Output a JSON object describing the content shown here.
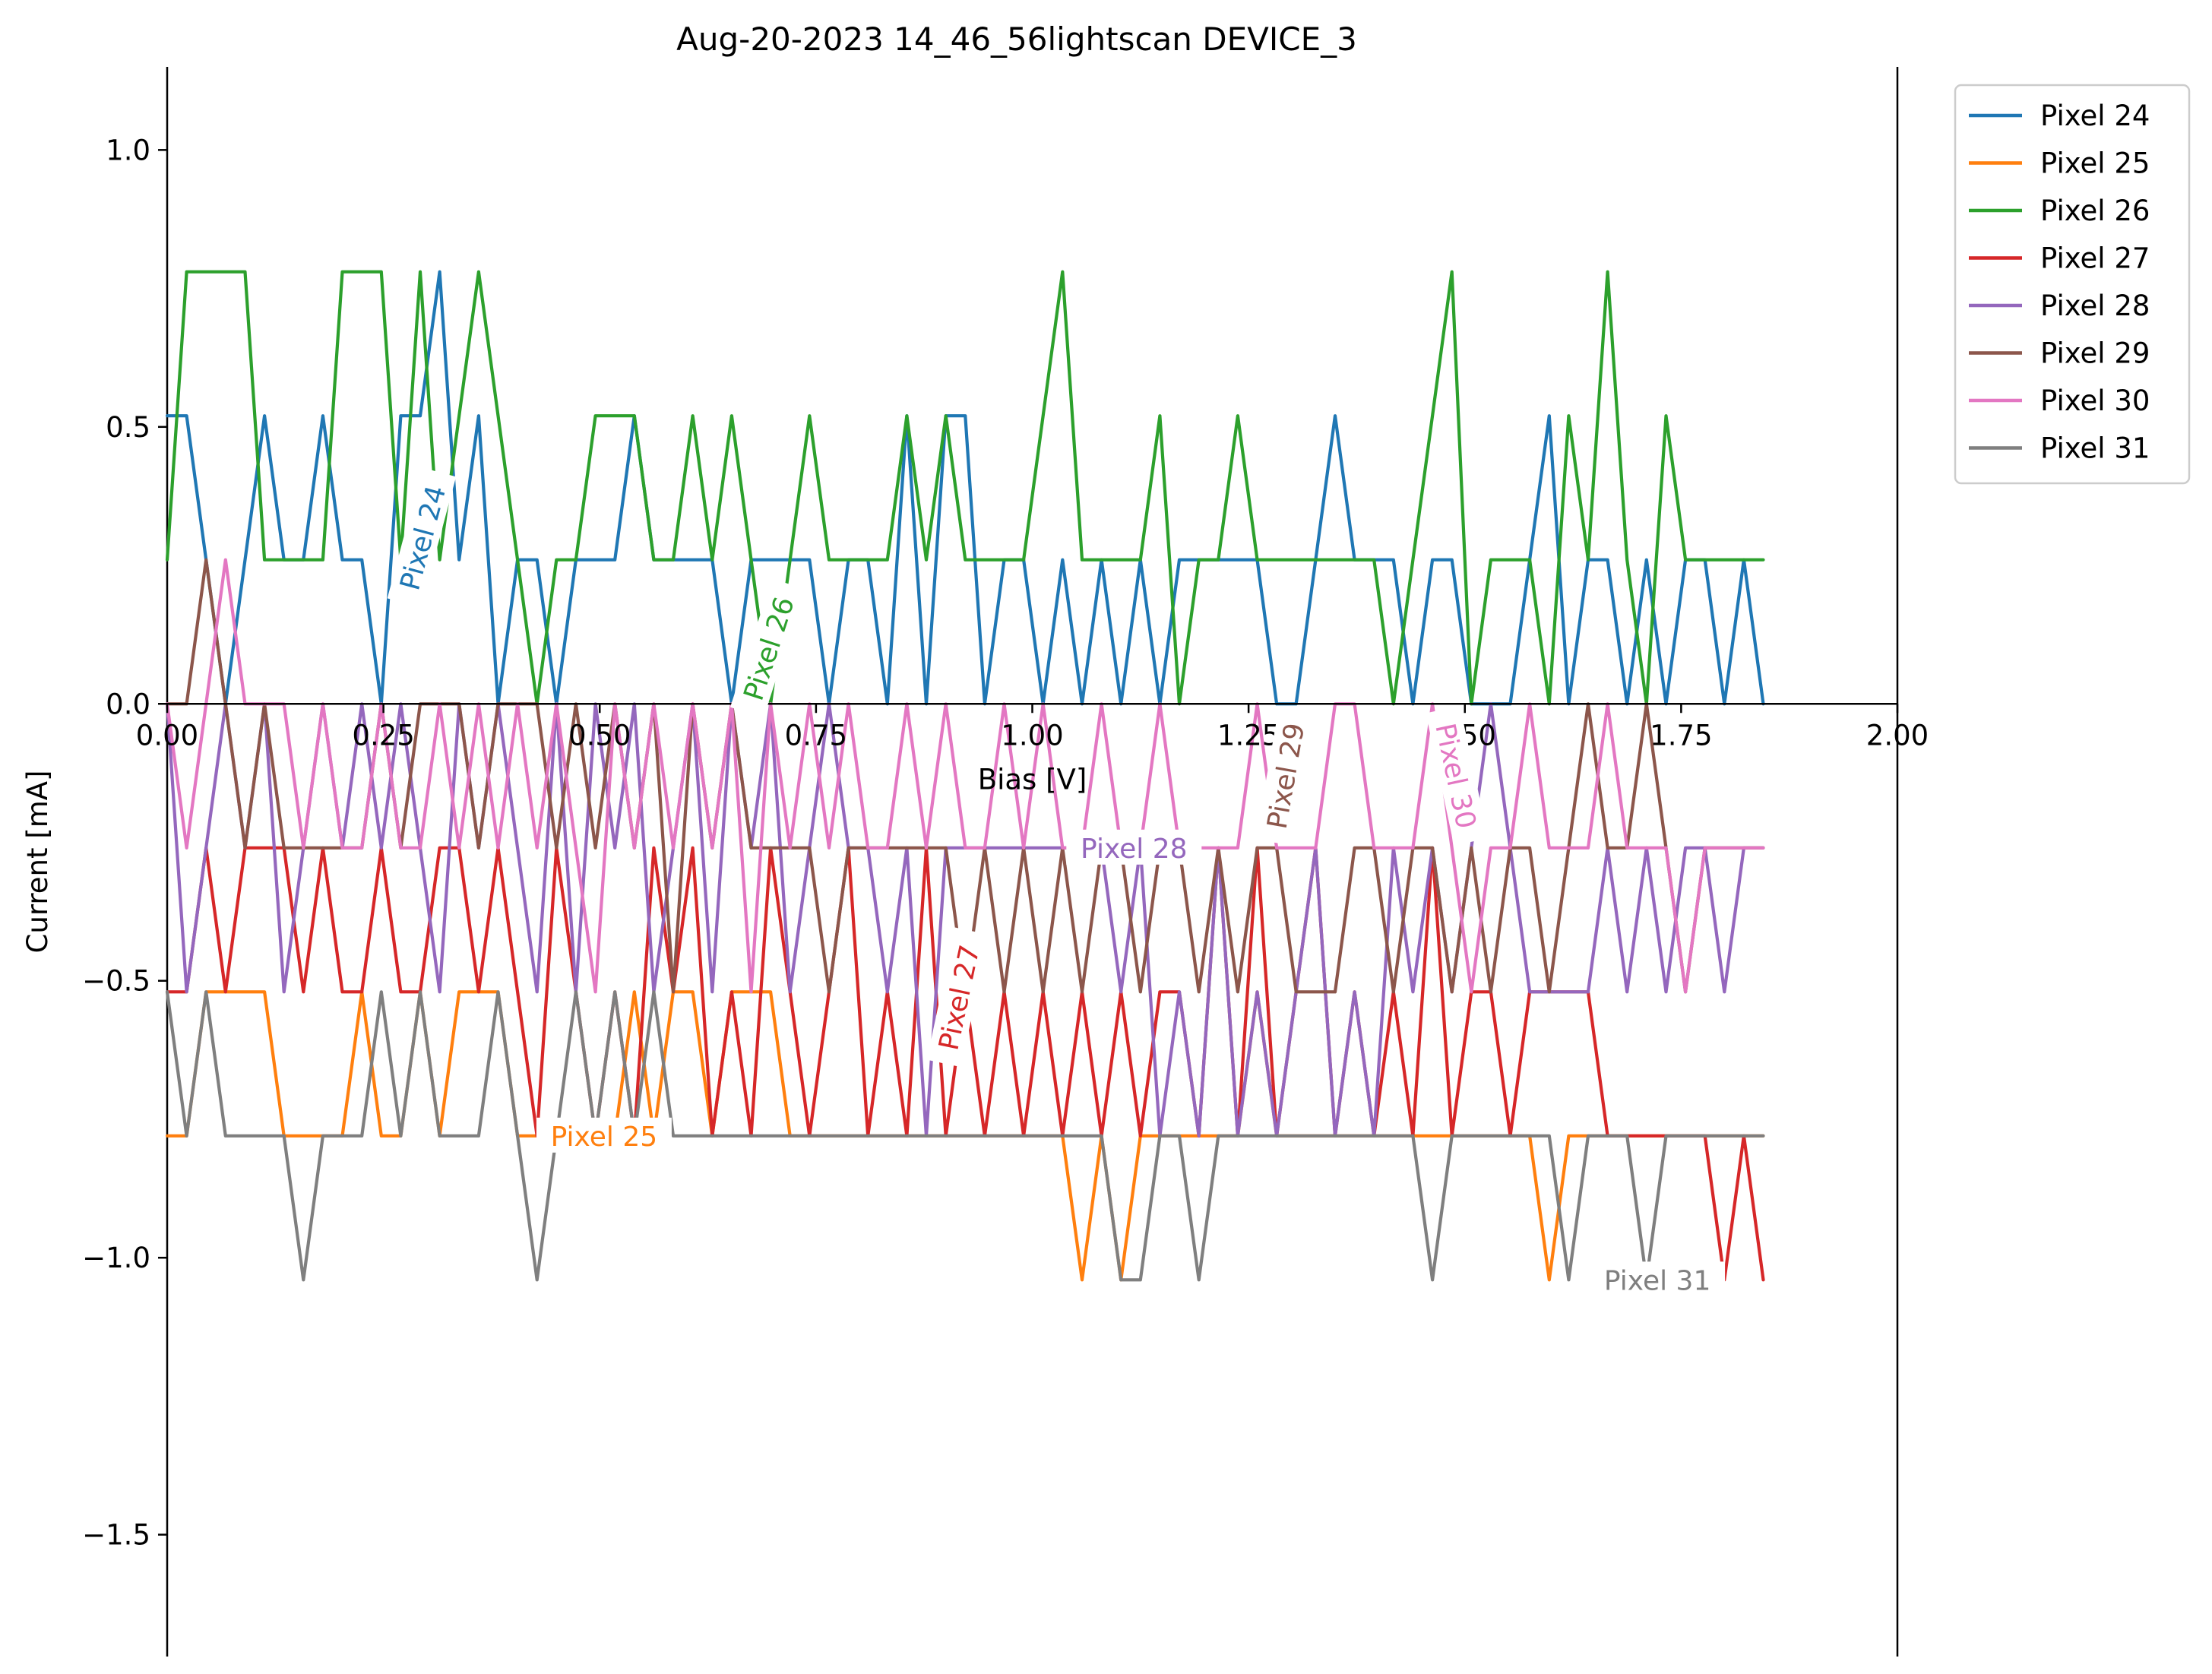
{
  "chart_data": {
    "type": "line",
    "title": "Aug-20-2023 14_46_56lightscan DEVICE_3",
    "xlabel": "Bias [V]",
    "ylabel": "Current [mA]",
    "xlim": [
      0.0,
      2.0
    ],
    "ylim": [
      -1.72,
      1.15
    ],
    "x_ticks": [
      "0.00",
      "0.25",
      "0.50",
      "0.75",
      "1.00",
      "1.25",
      "1.50",
      "1.75",
      "2.00"
    ],
    "y_ticks": [
      "1.0",
      "0.5",
      "0.0",
      "−0.5",
      "−1.0",
      "−1.5"
    ],
    "x_tick_values": [
      0.0,
      0.25,
      0.5,
      0.75,
      1.0,
      1.25,
      1.5,
      1.75,
      2.0
    ],
    "y_tick_values": [
      1.0,
      0.5,
      0.0,
      -0.5,
      -1.0,
      -1.5
    ],
    "grid": false,
    "legend_position": "outside-top-right",
    "x": [
      0.0,
      0.0225,
      0.045,
      0.0675,
      0.09,
      0.1125,
      0.135,
      0.1575,
      0.18,
      0.2025,
      0.225,
      0.2475,
      0.27,
      0.2925,
      0.315,
      0.3375,
      0.36,
      0.3825,
      0.405,
      0.4275,
      0.45,
      0.4725,
      0.495,
      0.5175,
      0.54,
      0.5625,
      0.585,
      0.6075,
      0.63,
      0.6525,
      0.675,
      0.6975,
      0.72,
      0.7425,
      0.765,
      0.7875,
      0.81,
      0.8325,
      0.855,
      0.8775,
      0.9,
      0.9225,
      0.945,
      0.9675,
      0.99,
      1.0125,
      1.035,
      1.0575,
      1.08,
      1.1025,
      1.125,
      1.1475,
      1.17,
      1.1925,
      1.215,
      1.2375,
      1.26,
      1.2825,
      1.305,
      1.3275,
      1.35,
      1.3725,
      1.395,
      1.4175,
      1.44,
      1.4625,
      1.485,
      1.5075,
      1.53,
      1.5525,
      1.575,
      1.5975,
      1.62,
      1.6425,
      1.665,
      1.6875,
      1.71,
      1.7325,
      1.755,
      1.7775,
      1.8,
      1.8225,
      1.845
    ],
    "series": [
      {
        "name": "Pixel 24",
        "color": "#1f77b4",
        "values": [
          0.52,
          0.52,
          0.26,
          0.0,
          0.26,
          0.52,
          0.26,
          0.26,
          0.52,
          0.26,
          0.26,
          0.0,
          0.52,
          0.52,
          0.78,
          0.26,
          0.52,
          0.0,
          0.26,
          0.26,
          0.0,
          0.26,
          0.26,
          0.26,
          0.52,
          0.26,
          0.26,
          0.26,
          0.26,
          0.0,
          0.26,
          0.26,
          0.26,
          0.26,
          0.0,
          0.26,
          0.26,
          0.0,
          0.52,
          0.0,
          0.52,
          0.52,
          0.0,
          0.26,
          0.26,
          0.0,
          0.26,
          0.0,
          0.26,
          0.0,
          0.26,
          0.0,
          0.26,
          0.26,
          0.26,
          0.26,
          0.26,
          0.0,
          0.0,
          0.26,
          0.52,
          0.26,
          0.26,
          0.26,
          0.0,
          0.26,
          0.26,
          0.0,
          0.0,
          0.0,
          0.26,
          0.52,
          0.0,
          0.26,
          0.26,
          0.0,
          0.26,
          0.0,
          0.26,
          0.26,
          0.0,
          0.26,
          0.0
        ]
      },
      {
        "name": "Pixel 25",
        "color": "#ff7f0e",
        "values": [
          -0.78,
          -0.78,
          -0.52,
          -0.52,
          -0.52,
          -0.52,
          -0.78,
          -0.78,
          -0.78,
          -0.78,
          -0.52,
          -0.78,
          -0.78,
          -0.52,
          -0.78,
          -0.52,
          -0.52,
          -0.52,
          -0.78,
          -0.78,
          -0.78,
          -0.78,
          -0.78,
          -0.78,
          -0.52,
          -0.78,
          -0.52,
          -0.52,
          -0.78,
          -0.52,
          -0.52,
          -0.52,
          -0.78,
          -0.78,
          -0.78,
          -0.78,
          -0.78,
          -0.78,
          -0.78,
          -0.78,
          -0.78,
          -0.78,
          -0.78,
          -0.78,
          -0.78,
          -0.78,
          -0.78,
          -1.04,
          -0.78,
          -1.04,
          -0.78,
          -0.78,
          -0.78,
          -0.78,
          -0.78,
          -0.78,
          -0.52,
          -0.78,
          -0.78,
          -0.78,
          -0.78,
          -0.78,
          -0.78,
          -0.78,
          -0.78,
          -0.78,
          -0.78,
          -0.78,
          -0.78,
          -0.78,
          -0.78,
          -1.04,
          -0.78,
          -0.78,
          -0.78,
          -0.78,
          -0.78,
          -0.78,
          -0.78,
          -0.78,
          -0.78,
          -0.78,
          -0.78
        ]
      },
      {
        "name": "Pixel 26",
        "color": "#2ca02c",
        "values": [
          0.26,
          0.78,
          0.78,
          0.78,
          0.78,
          0.26,
          0.26,
          0.26,
          0.26,
          0.78,
          0.78,
          0.78,
          0.26,
          0.78,
          0.26,
          0.52,
          0.78,
          0.52,
          0.26,
          0.0,
          0.26,
          0.26,
          0.52,
          0.52,
          0.52,
          0.26,
          0.26,
          0.52,
          0.26,
          0.52,
          0.26,
          0.0,
          0.26,
          0.52,
          0.26,
          0.26,
          0.26,
          0.26,
          0.52,
          0.26,
          0.52,
          0.26,
          0.26,
          0.26,
          0.26,
          0.52,
          0.78,
          0.26,
          0.26,
          0.26,
          0.26,
          0.52,
          0.0,
          0.26,
          0.26,
          0.52,
          0.26,
          0.26,
          0.26,
          0.26,
          0.26,
          0.26,
          0.26,
          0.0,
          0.26,
          0.52,
          0.78,
          0.0,
          0.26,
          0.26,
          0.26,
          0.0,
          0.52,
          0.26,
          0.78,
          0.26,
          0.0,
          0.52,
          0.26,
          0.26,
          0.26,
          0.26,
          0.26
        ]
      },
      {
        "name": "Pixel 27",
        "color": "#d62728",
        "values": [
          -0.52,
          -0.52,
          -0.26,
          -0.52,
          -0.26,
          -0.26,
          -0.26,
          -0.52,
          -0.26,
          -0.52,
          -0.52,
          -0.26,
          -0.52,
          -0.52,
          -0.26,
          -0.26,
          -0.52,
          -0.26,
          -0.52,
          -0.78,
          -0.26,
          -0.52,
          -0.78,
          -0.52,
          -0.78,
          -0.26,
          -0.52,
          -0.26,
          -0.78,
          -0.52,
          -0.78,
          -0.26,
          -0.52,
          -0.78,
          -0.52,
          -0.26,
          -0.78,
          -0.52,
          -0.78,
          -0.26,
          -0.78,
          -0.52,
          -0.78,
          -0.52,
          -0.78,
          -0.52,
          -0.78,
          -0.52,
          -0.78,
          -0.52,
          -0.78,
          -0.52,
          -0.52,
          -0.78,
          -0.26,
          -0.78,
          -0.26,
          -0.78,
          -0.52,
          -0.26,
          -0.78,
          -0.52,
          -0.78,
          -0.52,
          -0.78,
          -0.26,
          -0.78,
          -0.52,
          -0.52,
          -0.78,
          -0.52,
          -0.52,
          -0.52,
          -0.52,
          -0.78,
          -0.78,
          -0.78,
          -0.78,
          -0.78,
          -0.78,
          -1.04,
          -0.78,
          -1.04
        ]
      },
      {
        "name": "Pixel 28",
        "color": "#9467bd",
        "values": [
          0.0,
          -0.52,
          -0.26,
          0.0,
          -0.26,
          0.0,
          -0.52,
          -0.26,
          0.0,
          -0.26,
          0.0,
          -0.26,
          0.0,
          -0.26,
          -0.52,
          0.0,
          -0.26,
          0.0,
          -0.26,
          -0.52,
          0.0,
          -0.52,
          0.0,
          -0.26,
          0.0,
          -0.52,
          -0.26,
          0.0,
          -0.52,
          0.0,
          -0.26,
          0.0,
          -0.52,
          -0.26,
          0.0,
          -0.26,
          -0.26,
          -0.52,
          -0.26,
          -0.78,
          -0.26,
          -0.26,
          -0.26,
          -0.26,
          -0.26,
          -0.26,
          -0.26,
          -0.26,
          -0.26,
          -0.52,
          -0.26,
          -0.78,
          -0.52,
          -0.78,
          -0.26,
          -0.78,
          -0.52,
          -0.78,
          -0.52,
          -0.26,
          -0.78,
          -0.52,
          -0.78,
          -0.26,
          -0.52,
          -0.26,
          -0.52,
          -0.26,
          0.0,
          -0.26,
          -0.52,
          -0.52,
          -0.52,
          -0.52,
          -0.26,
          -0.52,
          -0.26,
          -0.52,
          -0.26,
          -0.26,
          -0.52,
          -0.26,
          -0.26
        ]
      },
      {
        "name": "Pixel 29",
        "color": "#8c564b",
        "values": [
          0.0,
          0.0,
          0.26,
          0.0,
          -0.26,
          0.0,
          -0.26,
          -0.26,
          -0.26,
          -0.26,
          -0.26,
          0.0,
          -0.26,
          0.0,
          0.0,
          0.0,
          -0.26,
          0.0,
          0.0,
          0.0,
          -0.26,
          0.0,
          -0.26,
          0.0,
          -0.26,
          0.0,
          -0.52,
          0.0,
          -0.26,
          0.0,
          -0.26,
          -0.26,
          -0.26,
          -0.26,
          -0.52,
          -0.26,
          -0.26,
          -0.26,
          -0.26,
          -0.26,
          -0.26,
          -0.52,
          -0.26,
          -0.52,
          -0.26,
          -0.52,
          -0.26,
          -0.52,
          -0.26,
          -0.26,
          -0.52,
          -0.26,
          -0.26,
          -0.52,
          -0.26,
          -0.52,
          -0.26,
          -0.26,
          -0.52,
          -0.52,
          -0.52,
          -0.26,
          -0.26,
          -0.52,
          -0.26,
          -0.26,
          -0.52,
          -0.26,
          -0.52,
          -0.26,
          -0.26,
          -0.52,
          -0.26,
          0.0,
          -0.26,
          -0.26,
          0.0,
          -0.26,
          -0.52,
          -0.26,
          -0.26,
          -0.26,
          -0.26
        ]
      },
      {
        "name": "Pixel 30",
        "color": "#e377c2",
        "values": [
          0.0,
          -0.26,
          0.0,
          0.26,
          0.0,
          0.0,
          0.0,
          -0.26,
          0.0,
          -0.26,
          -0.26,
          0.0,
          -0.26,
          -0.26,
          0.0,
          -0.26,
          0.0,
          -0.26,
          0.0,
          -0.26,
          0.0,
          -0.26,
          -0.52,
          0.0,
          -0.26,
          0.0,
          -0.26,
          0.0,
          -0.26,
          0.0,
          -0.52,
          0.0,
          -0.26,
          0.0,
          -0.26,
          0.0,
          -0.26,
          -0.26,
          0.0,
          -0.26,
          0.0,
          -0.26,
          -0.26,
          0.0,
          -0.26,
          0.0,
          -0.26,
          -0.26,
          0.0,
          -0.26,
          -0.26,
          0.0,
          -0.26,
          -0.26,
          -0.26,
          -0.26,
          0.0,
          -0.26,
          -0.26,
          -0.26,
          0.0,
          0.0,
          -0.26,
          -0.26,
          -0.26,
          0.0,
          -0.26,
          -0.52,
          -0.26,
          -0.26,
          0.0,
          -0.26,
          -0.26,
          -0.26,
          0.0,
          -0.26,
          -0.26,
          -0.26,
          -0.52,
          -0.26,
          -0.26,
          -0.26,
          -0.26
        ]
      },
      {
        "name": "Pixel 31",
        "color": "#7f7f7f",
        "values": [
          -0.52,
          -0.78,
          -0.52,
          -0.78,
          -0.78,
          -0.78,
          -0.78,
          -1.04,
          -0.78,
          -0.78,
          -0.78,
          -0.52,
          -0.78,
          -0.52,
          -0.78,
          -0.78,
          -0.78,
          -0.52,
          -0.78,
          -1.04,
          -0.78,
          -0.52,
          -0.78,
          -0.52,
          -0.78,
          -0.52,
          -0.78,
          -0.78,
          -0.78,
          -0.78,
          -0.78,
          -0.78,
          -0.78,
          -0.78,
          -0.78,
          -0.78,
          -0.78,
          -0.78,
          -0.78,
          -0.78,
          -0.78,
          -0.78,
          -0.78,
          -0.78,
          -0.78,
          -0.78,
          -0.78,
          -0.78,
          -0.78,
          -1.04,
          -1.04,
          -0.78,
          -0.78,
          -1.04,
          -0.78,
          -0.78,
          -0.78,
          -0.78,
          -0.78,
          -0.78,
          -0.78,
          -0.78,
          -0.78,
          -0.78,
          -0.78,
          -1.04,
          -0.78,
          -0.78,
          -0.78,
          -0.78,
          -0.78,
          -0.78,
          -1.04,
          -0.78,
          -0.78,
          -0.78,
          -1.04,
          -0.78,
          -0.78,
          -0.78,
          -0.78,
          -0.78,
          -0.78
        ]
      }
    ],
    "inline_labels": [
      {
        "text": "Pixel 24",
        "series": "Pixel 24",
        "x": 0.295,
        "y": 0.3,
        "rotate": -75
      },
      {
        "text": "Pixel 25",
        "series": "Pixel 25",
        "x": 0.505,
        "y": -0.78,
        "rotate": 0
      },
      {
        "text": "Pixel 26",
        "series": "Pixel 26",
        "x": 0.695,
        "y": 0.1,
        "rotate": -72
      },
      {
        "text": "Pixel 27",
        "series": "Pixel 27",
        "x": 0.915,
        "y": -0.53,
        "rotate": -78
      },
      {
        "text": "Pixel 28",
        "series": "Pixel 28",
        "x": 1.1175,
        "y": -0.26,
        "rotate": 0
      },
      {
        "text": "Pixel 29",
        "series": "Pixel 29",
        "x": 1.2925,
        "y": -0.13,
        "rotate": -80
      },
      {
        "text": "Pixel 30",
        "series": "Pixel 30",
        "x": 1.49,
        "y": -0.13,
        "rotate": 78
      },
      {
        "text": "Pixel 31",
        "series": "Pixel 31",
        "x": 1.7225,
        "y": -1.04,
        "rotate": 0
      }
    ]
  }
}
